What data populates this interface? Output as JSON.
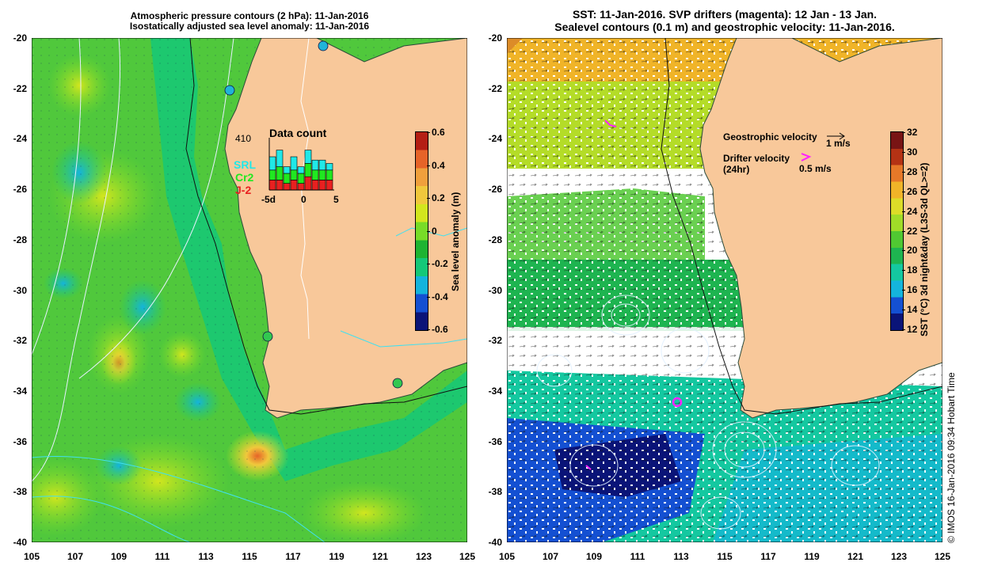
{
  "left_panel": {
    "title_line1": "Atmospheric pressure contours (2 hPa): 11-Jan-2016",
    "title_line2": "Isostatically adjusted sea level anomaly: 11-Jan-2016",
    "colorbar_label": "Sea level anomaly (m)",
    "colorbar_ticks": [
      "0.6",
      "0.4",
      "0.2",
      "0",
      "-0.2",
      "-0.4",
      "-0.6"
    ],
    "colors": [
      "#0a1478",
      "#1450d2",
      "#14b4dc",
      "#14c878",
      "#1eb432",
      "#78dc28",
      "#d2e61e",
      "#f0c83c",
      "#f0a03c",
      "#e66428",
      "#b41e14"
    ]
  },
  "right_panel": {
    "title_line1": "SST: 11-Jan-2016. SVP drifters (magenta): 12 Jan - 13 Jan.",
    "title_line2": "Sealevel contours (0.1 m) and geostrophic velocity: 11-Jan-2016.",
    "colorbar_label": "SST (°C) 3d night&day (L3S-3d QL>=2)",
    "colorbar_ticks": [
      "32",
      "30",
      "28",
      "26",
      "24",
      "22",
      "20",
      "18",
      "16",
      "14",
      "12"
    ],
    "legend_geo_label": "Geostrophic velocity",
    "legend_geo_value": "1 m/s",
    "legend_drifter_label": "Drifter velocity",
    "legend_drifter_sub": "(24hr)",
    "legend_drifter_value": "0.5 m/s",
    "colors": [
      "#0a1478",
      "#1450d2",
      "#14b4dc",
      "#14c8a0",
      "#1eb450",
      "#50c832",
      "#a0dc28",
      "#dcdc28",
      "#f0b428",
      "#e67828",
      "#b43214",
      "#781414"
    ]
  },
  "x_ticks": [
    "105",
    "107",
    "109",
    "111",
    "113",
    "115",
    "117",
    "119",
    "121",
    "123",
    "125"
  ],
  "y_ticks": [
    "-20",
    "-22",
    "-24",
    "-26",
    "-28",
    "-30",
    "-32",
    "-34",
    "-36",
    "-38",
    "-40"
  ],
  "inset": {
    "title": "Data count",
    "count": "410",
    "labels": [
      "SRL",
      "Cr2",
      "J-2"
    ],
    "label_colors": [
      "#20e8e8",
      "#20e820",
      "#e82020"
    ],
    "axis_ticks": [
      "-5d",
      "0",
      "5"
    ],
    "bars": [
      {
        "j2": 3,
        "cr2": 3,
        "srl": 4
      },
      {
        "j2": 3,
        "cr2": 4,
        "srl": 5
      },
      {
        "j2": 2,
        "cr2": 3,
        "srl": 2
      },
      {
        "j2": 3,
        "cr2": 3,
        "srl": 4
      },
      {
        "j2": 2,
        "cr2": 3,
        "srl": 2
      },
      {
        "j2": 4,
        "cr2": 4,
        "srl": 4
      },
      {
        "j2": 3,
        "cr2": 3,
        "srl": 3
      },
      {
        "j2": 3,
        "cr2": 3,
        "srl": 3
      },
      {
        "j2": 3,
        "cr2": 3,
        "srl": 2
      }
    ]
  },
  "land_color": "#f8c89a",
  "credit": "© IMOS 16-Jan-2016 09:34 Hobart Time"
}
